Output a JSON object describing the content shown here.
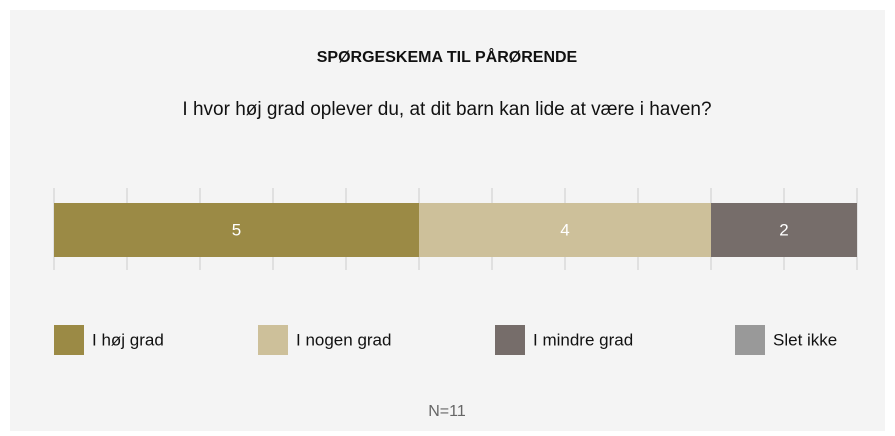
{
  "chart_data": {
    "type": "bar",
    "orientation": "horizontal",
    "stacked": true,
    "title": "SPØRGESKEMA TIL PÅRØRENDE",
    "subtitle": "I hvor høj grad oplever du, at dit barn kan lide at være i haven?",
    "series": [
      {
        "name": "I høj grad",
        "color": "#9b8a45",
        "values": [
          5
        ]
      },
      {
        "name": "I nogen grad",
        "color": "#cdc09a",
        "values": [
          4
        ]
      },
      {
        "name": "I mindre grad",
        "color": "#766d6a",
        "values": [
          2
        ]
      },
      {
        "name": "Slet ikke",
        "color": "#999999",
        "values": [
          0
        ]
      }
    ],
    "xlim": [
      0,
      11
    ],
    "xticks": [
      0,
      1,
      2,
      3,
      4,
      5,
      6,
      7,
      8,
      9,
      10,
      11
    ],
    "annotation": "N=11"
  }
}
